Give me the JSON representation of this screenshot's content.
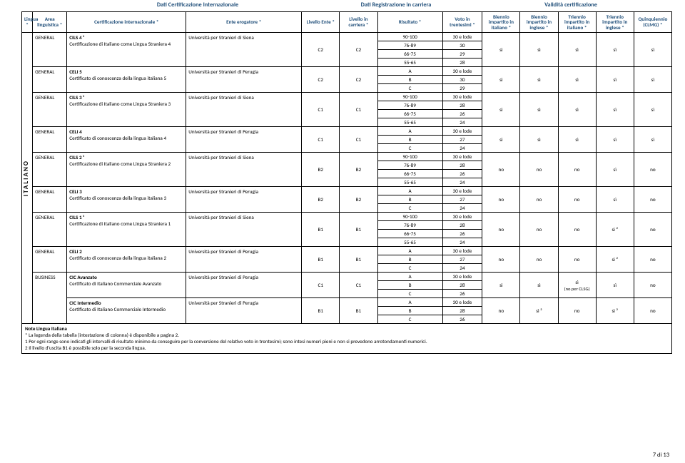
{
  "captions": {
    "int": "Dati Certificazione Internazionale",
    "reg": "Dati Registrazione in carriera",
    "val": "Validità certificazione"
  },
  "headers": {
    "lang": "Lingua *",
    "area": "Area linguistica *",
    "cert": "Certificazione internazionale *",
    "ente": "Ente erogatore *",
    "lvlE": "Livello Ente *",
    "lvlC": "Livello in carriera *",
    "ris": "Risultato *",
    "voto": "Voto in trentesimi *",
    "bi_it": "Biennio impartito in italiano *",
    "bi_en": "Biennio impartito in inglese *",
    "tri_it": "Triennio impartito in italiano *",
    "tri_en": "Triennio impartito in inglese *",
    "quin": "Quinquiennio (CLMG) *"
  },
  "lang_vertical": "ITALIANO",
  "ente_siena": "Università per Stranieri di Siena",
  "ente_perugia": "Università per Stranieri di Perugia",
  "si": "sì",
  "no": "no",
  "si2": "sì ²",
  "si_noclsg": "sì\n(no per CLSG)",
  "rows": [
    {
      "area": "GENERAL",
      "cert_title": "CILS 4 ¹",
      "cert_sub": "Certificazione di Italiano come Lingua Straniera 4",
      "ente": "siena",
      "lvl": "C2",
      "bands": [
        [
          "90-100",
          "30 e lode"
        ],
        [
          "76-89",
          "30"
        ],
        [
          "66-75",
          "29"
        ],
        [
          "55-65",
          "28"
        ]
      ],
      "v": [
        "sì",
        "sì",
        "sì",
        "sì",
        "sì"
      ]
    },
    {
      "area": "GENERAL",
      "cert_title": "CELI 5",
      "cert_sub": "Certificato di conoscenza della lingua italiana 5",
      "ente": "perugia",
      "lvl": "C2",
      "bands": [
        [
          "A",
          "30 e lode"
        ],
        [
          "B",
          "30"
        ],
        [
          "C",
          "29"
        ]
      ],
      "v": [
        "sì",
        "sì",
        "sì",
        "sì",
        "sì"
      ]
    },
    {
      "area": "GENERAL",
      "cert_title": "CILS 3 ¹",
      "cert_sub": "Certificazione di Italiano come Lingua Straniera 3",
      "ente": "siena",
      "lvl": "C1",
      "bands": [
        [
          "90-100",
          "30 e lode"
        ],
        [
          "76-89",
          "28"
        ],
        [
          "66-75",
          "26"
        ],
        [
          "55-65",
          "24"
        ]
      ],
      "v": [
        "sì",
        "sì",
        "sì",
        "sì",
        "sì"
      ]
    },
    {
      "area": "GENERAL",
      "cert_title": "CELI 4",
      "cert_sub": "Certificato di conoscenza della lingua italiana 4",
      "ente": "perugia",
      "lvl": "C1",
      "bands": [
        [
          "A",
          "30 e lode"
        ],
        [
          "B",
          "27"
        ],
        [
          "C",
          "24"
        ]
      ],
      "v": [
        "sì",
        "sì",
        "sì",
        "sì",
        "sì"
      ]
    },
    {
      "area": "GENERAL",
      "cert_title": "CILS 2 ¹",
      "cert_sub": "Certificazione di Italiano come Lingua Straniera 2",
      "ente": "siena",
      "lvl": "B2",
      "bands": [
        [
          "90-100",
          "30 e lode"
        ],
        [
          "76-89",
          "28"
        ],
        [
          "66-75",
          "26"
        ],
        [
          "55-65",
          "24"
        ]
      ],
      "v": [
        "no",
        "no",
        "no",
        "sì",
        "no"
      ]
    },
    {
      "area": "GENERAL",
      "cert_title": "CELI 3",
      "cert_sub": "Certificato di conoscenza della lingua italiana 3",
      "ente": "perugia",
      "lvl": "B2",
      "bands": [
        [
          "A",
          "30 e lode"
        ],
        [
          "B",
          "27"
        ],
        [
          "C",
          "24"
        ]
      ],
      "v": [
        "no",
        "no",
        "no",
        "sì",
        "no"
      ]
    },
    {
      "area": "GENERAL",
      "cert_title": "CILS 1 ¹",
      "cert_sub": "Certificazione di Italiano come Lingua Straniera 1",
      "ente": "siena",
      "lvl": "B1",
      "bands": [
        [
          "90-100",
          "30 e lode"
        ],
        [
          "76-89",
          "28"
        ],
        [
          "66-75",
          "26"
        ],
        [
          "55-65",
          "24"
        ]
      ],
      "v": [
        "no",
        "no",
        "no",
        "sì ²",
        "no"
      ]
    },
    {
      "area": "GENERAL",
      "cert_title": "CELI 2",
      "cert_sub": "Certificato di conoscenza della lingua italiana 2",
      "ente": "perugia",
      "lvl": "B1",
      "bands": [
        [
          "A",
          "30 e lode"
        ],
        [
          "B",
          "27"
        ],
        [
          "C",
          "24"
        ]
      ],
      "v": [
        "no",
        "no",
        "no",
        "sì ²",
        "no"
      ]
    },
    {
      "area": "BUSINESS",
      "cert_title": "CIC Avanzato",
      "cert_sub": "Certificato di Italiano Commerciale Avanzato",
      "ente": "perugia",
      "lvl": "C1",
      "bands": [
        [
          "A",
          "30 e lode"
        ],
        [
          "B",
          "28"
        ],
        [
          "C",
          "26"
        ]
      ],
      "v": [
        "sì",
        "sì",
        "sì\n(no per CLSG)",
        "sì",
        "no"
      ]
    },
    {
      "area": "",
      "cert_title": "CIC Intermedio",
      "cert_sub": "Certificato di Italiano Commerciale Intermedio",
      "ente": "perugia",
      "lvl": "B1",
      "bands": [
        [
          "A",
          "30 e lode"
        ],
        [
          "B",
          "28"
        ],
        [
          "C",
          "26"
        ]
      ],
      "v": [
        "no",
        "sì ²",
        "no",
        "sì ²",
        "no"
      ]
    }
  ],
  "notes": {
    "title": "Note Lingua Italiana",
    "n0": "* La legenda della tabella (intestazione di colonna) è disponibile a pagina 2.",
    "n1": "1 Per ogni range sono indicati gli intervalli di risultato minimo da conseguire per la conversione del relativo voto in trentesimi; sono intesi numeri pieni e non si prevedono arrotondamenti numerici.",
    "n2": "2 Il livello d'uscita B1 è possibile solo per la seconda lingua."
  },
  "page": "7 di 13"
}
